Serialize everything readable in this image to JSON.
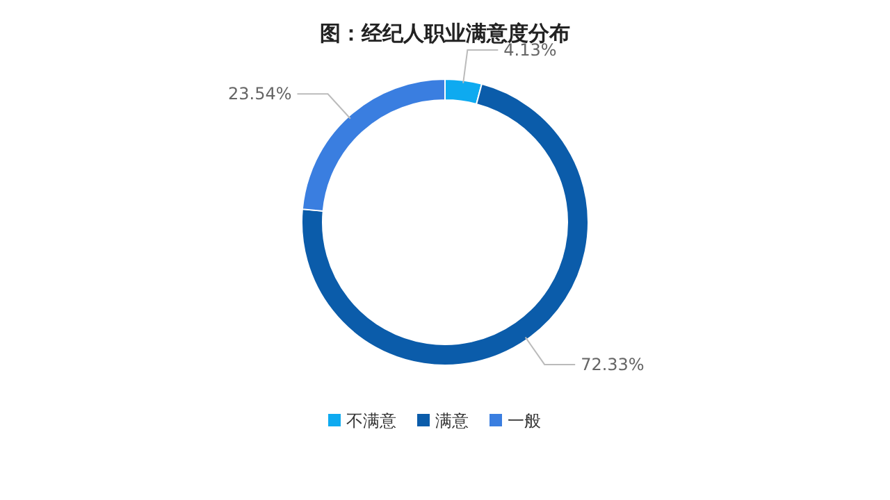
{
  "chart_data": {
    "type": "donut",
    "title": "图：经纪人职业满意度分布",
    "categories": [
      "不满意",
      "满意",
      "一般"
    ],
    "values": [
      4.13,
      72.33,
      23.54
    ],
    "colors": [
      "#0eaaf0",
      "#0b5caa",
      "#3a7ee0"
    ],
    "value_labels": [
      "4.13%",
      "72.33%",
      "23.54%"
    ],
    "legend": "bottom"
  }
}
